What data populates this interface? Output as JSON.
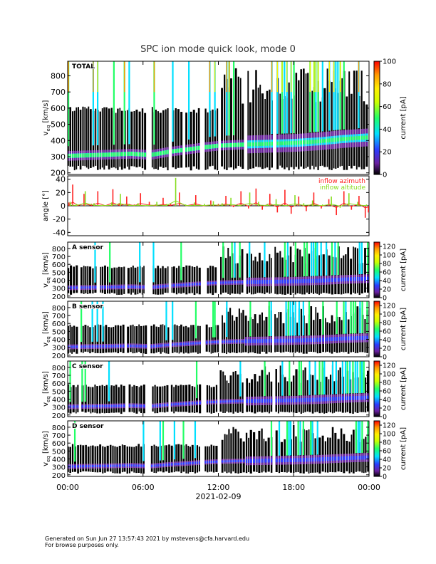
{
  "title": "SPC ion mode quick look, mode 0",
  "footer": {
    "line1": "Generated on Sun Jun 27 13:57:43 2021 by mstevens@cfa.harvard.edu",
    "line2": "For browse purposes only."
  },
  "colors": {
    "black": "#000000",
    "purple": "#6a1fa0",
    "blue": "#2a3cff",
    "cyan": "#00e0ff",
    "green": "#22ff66",
    "yellow": "#ffee00",
    "orange": "#ff9900",
    "red": "#ff0000",
    "azimuth": "#ff2222",
    "elevation": "#88dd22"
  },
  "chart_data": [
    {
      "type": "heatmap",
      "panel_label": "TOTAL",
      "ylabel_main": "v",
      "ylabel_sub": "eq",
      "ylabel_unit": "[km/s]",
      "ylim": [
        190,
        890
      ],
      "yticks": [
        200,
        300,
        400,
        500,
        600,
        700,
        800
      ],
      "xlim": [
        0,
        24
      ],
      "colorbar": {
        "label": "current [pA]",
        "range": [
          0,
          100
        ],
        "ticks": [
          0,
          20,
          40,
          60,
          80,
          100
        ]
      },
      "core_speed_kms": [
        {
          "t": 0,
          "v": 305
        },
        {
          "t": 3,
          "v": 312
        },
        {
          "t": 5,
          "v": 318
        },
        {
          "t": 6.5,
          "v": 310
        },
        {
          "t": 8,
          "v": 330
        },
        {
          "t": 9.5,
          "v": 345
        },
        {
          "t": 11,
          "v": 360
        },
        {
          "t": 12,
          "v": 368
        },
        {
          "t": 14,
          "v": 375
        },
        {
          "t": 16,
          "v": 380
        },
        {
          "t": 18,
          "v": 385
        },
        {
          "t": 20,
          "v": 395
        },
        {
          "t": 22,
          "v": 410
        },
        {
          "t": 24,
          "v": 420
        }
      ]
    },
    {
      "type": "line",
      "ylabel": "angle [°]",
      "ylim": [
        -45,
        45
      ],
      "yticks": [
        -40,
        -20,
        0,
        20,
        40
      ],
      "xlim": [
        0,
        24
      ],
      "series": [
        {
          "name": "inflow azimuth",
          "color": "#ff2222",
          "x": [
            0.1,
            0.4,
            0.8,
            1.3,
            1.9,
            2.4,
            3.0,
            3.6,
            4.1,
            4.7,
            5.3,
            5.8,
            6.5,
            7.0,
            7.6,
            8.2,
            8.9,
            9.5,
            10.2,
            10.8,
            11.4,
            12.0,
            12.6,
            13.2,
            13.8,
            14.4,
            15.0,
            15.5,
            16.1,
            16.7,
            17.3,
            17.8,
            18.4,
            19.0,
            19.6,
            20.2,
            20.8,
            21.4,
            22.0,
            22.6,
            23.2,
            23.7,
            23.95
          ],
          "y": [
            5,
            32,
            2,
            18,
            3,
            22,
            1,
            25,
            4,
            14,
            2,
            19,
            6,
            2,
            12,
            3,
            20,
            1,
            16,
            0,
            8,
            3,
            15,
            -2,
            22,
            -4,
            26,
            -6,
            18,
            -10,
            24,
            -12,
            14,
            -8,
            20,
            -4,
            10,
            -14,
            22,
            -6,
            15,
            -18,
            -10
          ]
        },
        {
          "name": "inflow altitude",
          "color": "#88dd22",
          "x": [
            0.2,
            0.7,
            1.4,
            2.1,
            2.8,
            3.5,
            4.2,
            4.9,
            5.6,
            6.3,
            7.1,
            7.9,
            8.6,
            9.4,
            10.1,
            10.9,
            11.6,
            12.3,
            13.0,
            13.7,
            14.5,
            15.2,
            15.9,
            16.6,
            17.4,
            18.1,
            18.8,
            19.5,
            20.3,
            21.0,
            21.7,
            22.4,
            23.1,
            23.8
          ],
          "y": [
            6,
            3,
            22,
            4,
            2,
            5,
            18,
            3,
            4,
            2,
            6,
            3,
            42,
            2,
            5,
            3,
            7,
            4,
            12,
            2,
            20,
            6,
            3,
            10,
            1,
            16,
            4,
            8,
            2,
            14,
            -3,
            19,
            6,
            2
          ]
        }
      ]
    },
    {
      "type": "heatmap",
      "panel_label": "A sensor",
      "ylabel_main": "v",
      "ylabel_sub": "eq",
      "ylabel_unit": "[km/s]",
      "ylim": [
        180,
        880
      ],
      "yticks": [
        200,
        300,
        400,
        500,
        600,
        700,
        800
      ],
      "xlim": [
        0,
        24
      ],
      "colorbar": {
        "label": "current [pA]",
        "range": [
          0,
          130
        ],
        "ticks": [
          0,
          20,
          40,
          60,
          80,
          100,
          120
        ]
      }
    },
    {
      "type": "heatmap",
      "panel_label": "B sensor",
      "ylabel_main": "v",
      "ylabel_sub": "eq",
      "ylabel_unit": "[km/s]",
      "ylim": [
        180,
        880
      ],
      "yticks": [
        200,
        300,
        400,
        500,
        600,
        700,
        800
      ],
      "xlim": [
        0,
        24
      ],
      "colorbar": {
        "label": "current [pA]",
        "range": [
          0,
          130
        ],
        "ticks": [
          0,
          20,
          40,
          60,
          80,
          100,
          120
        ]
      }
    },
    {
      "type": "heatmap",
      "panel_label": "C sensor",
      "ylabel_main": "v",
      "ylabel_sub": "eq",
      "ylabel_unit": "[km/s]",
      "ylim": [
        180,
        880
      ],
      "yticks": [
        200,
        300,
        400,
        500,
        600,
        700,
        800
      ],
      "xlim": [
        0,
        24
      ],
      "colorbar": {
        "label": "current [pA]",
        "range": [
          0,
          130
        ],
        "ticks": [
          0,
          20,
          40,
          60,
          80,
          100,
          120
        ]
      }
    },
    {
      "type": "heatmap",
      "panel_label": "D sensor",
      "ylabel_main": "v",
      "ylabel_sub": "eq",
      "ylabel_unit": "[km/s]",
      "ylim": [
        180,
        880
      ],
      "yticks": [
        200,
        300,
        400,
        500,
        600,
        700,
        800
      ],
      "xlim": [
        0,
        24
      ],
      "colorbar": {
        "label": "current [pA]",
        "range": [
          0,
          130
        ],
        "ticks": [
          0,
          20,
          40,
          60,
          80,
          100,
          120
        ]
      },
      "x_tick_labels": [
        "00:00",
        "06:00",
        "12:00",
        "18:00",
        "00:00"
      ],
      "x_tick_hours": [
        0,
        6,
        12,
        18,
        24
      ],
      "xlabel": "2021-02-09"
    }
  ]
}
